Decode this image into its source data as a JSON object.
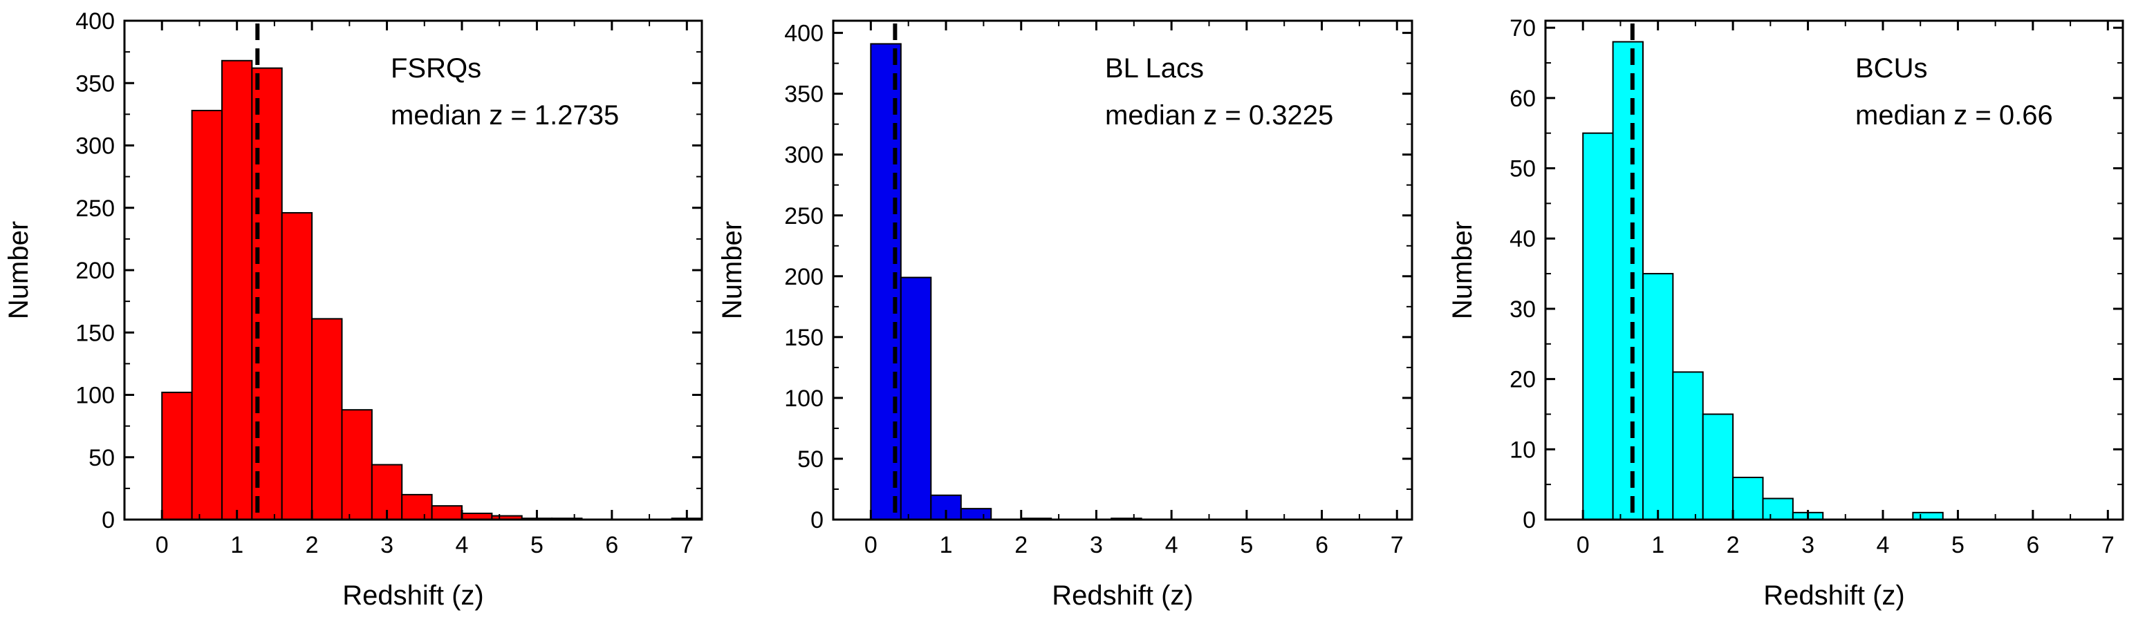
{
  "chart_data": [
    {
      "type": "bar",
      "label": "FSRQs",
      "median_text": "median z = 1.2735",
      "median": 1.2735,
      "xlabel": "Redshift (z)",
      "ylabel": "Number",
      "xlim": [
        -0.5,
        7.2
      ],
      "ylim": [
        0,
        400
      ],
      "xticks": [
        0,
        1,
        2,
        3,
        4,
        5,
        6,
        7
      ],
      "yticks": [
        0,
        50,
        100,
        150,
        200,
        250,
        300,
        350,
        400
      ],
      "bin_width": 0.4,
      "bins_start": [
        0,
        0.4,
        0.8,
        1.2,
        1.6,
        2.0,
        2.4,
        2.8,
        3.2,
        3.6,
        4.0,
        4.4,
        4.8,
        5.2,
        5.6,
        6.0,
        6.4,
        6.8
      ],
      "values": [
        102,
        328,
        368,
        362,
        246,
        161,
        88,
        44,
        20,
        11,
        5,
        3,
        1,
        1,
        0,
        0,
        0,
        1
      ],
      "fill": "#ff0000"
    },
    {
      "type": "bar",
      "label": "BL Lacs",
      "median_text": "median z = 0.3225",
      "median": 0.3225,
      "xlabel": "Redshift (z)",
      "ylabel": "Number",
      "xlim": [
        -0.5,
        7.2
      ],
      "ylim": [
        0,
        410
      ],
      "xticks": [
        0,
        1,
        2,
        3,
        4,
        5,
        6,
        7
      ],
      "yticks": [
        0,
        50,
        100,
        150,
        200,
        250,
        300,
        350,
        400
      ],
      "bin_width": 0.4,
      "bins_start": [
        0,
        0.4,
        0.8,
        1.2,
        1.6,
        2.0,
        2.4,
        2.8,
        3.2,
        3.6,
        4.0
      ],
      "values": [
        391,
        199,
        20,
        9,
        0,
        1,
        0,
        0,
        1,
        0,
        0
      ],
      "fill": "#0000ee"
    },
    {
      "type": "bar",
      "label": "BCUs",
      "median_text": "median z = 0.66",
      "median": 0.66,
      "xlabel": "Redshift (z)",
      "ylabel": "Number",
      "xlim": [
        -0.5,
        7.2
      ],
      "ylim": [
        0,
        71
      ],
      "xticks": [
        0,
        1,
        2,
        3,
        4,
        5,
        6,
        7
      ],
      "yticks": [
        0,
        10,
        20,
        30,
        40,
        50,
        60,
        70
      ],
      "bin_width": 0.4,
      "bins_start": [
        0,
        0.4,
        0.8,
        1.2,
        1.6,
        2.0,
        2.4,
        2.8,
        3.2,
        3.6,
        4.0,
        4.4
      ],
      "values": [
        55,
        68,
        35,
        21,
        15,
        6,
        3,
        1,
        0,
        0,
        0,
        1
      ],
      "fill": "#00ffff"
    }
  ]
}
